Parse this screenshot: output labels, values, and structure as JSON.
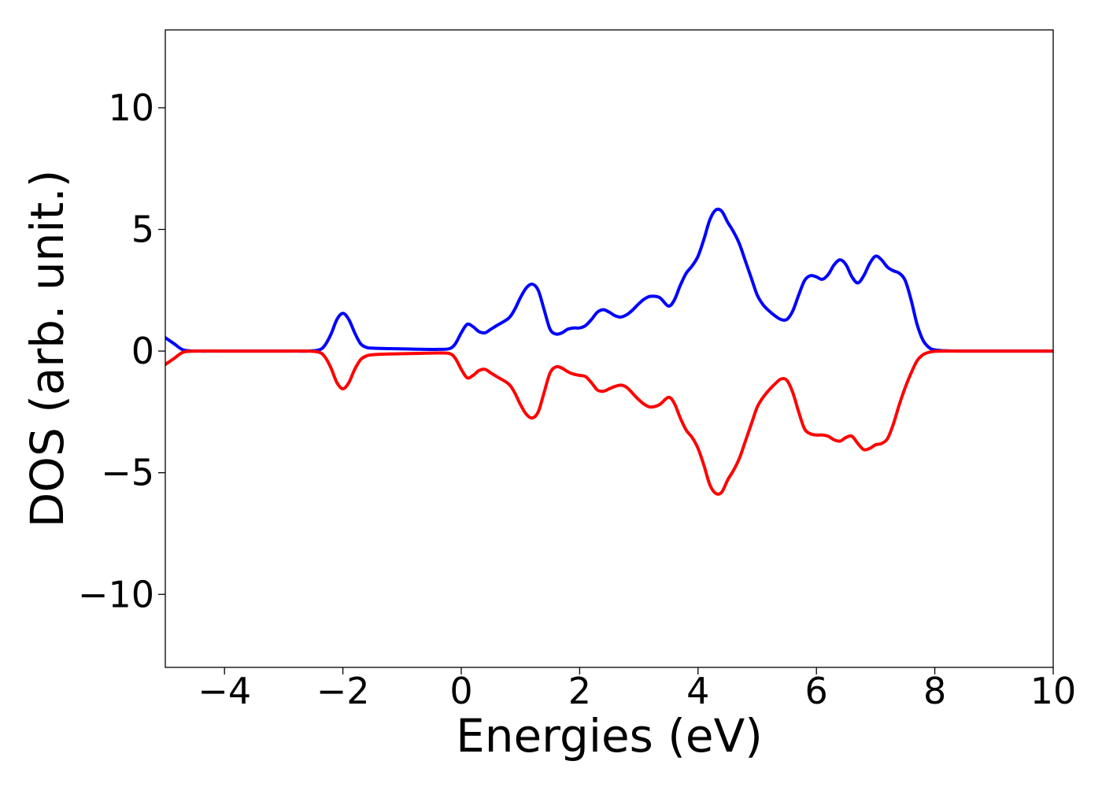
{
  "chart_data": {
    "type": "line",
    "title": "",
    "xlabel": "Energies (eV)",
    "ylabel": "DOS (arb. unit.)",
    "xlim": [
      -5,
      10
    ],
    "ylim": [
      -13,
      13.2
    ],
    "xticks": [
      -4,
      -2,
      0,
      2,
      4,
      6,
      8,
      10
    ],
    "xtick_labels": [
      "−4",
      "−2",
      "0",
      "2",
      "4",
      "6",
      "8",
      "10"
    ],
    "yticks": [
      -10,
      -5,
      0,
      5,
      10
    ],
    "ytick_labels": [
      "−10",
      "−5",
      "0",
      "5",
      "10"
    ],
    "grid": false,
    "legend": "none",
    "series": [
      {
        "color": "#0000ff",
        "x": [
          -5.0,
          -4.85,
          -4.7,
          -4.5,
          -4.0,
          -3.0,
          -2.6,
          -2.4,
          -2.3,
          -2.2,
          -2.1,
          -2.0,
          -1.9,
          -1.8,
          -1.7,
          -1.6,
          -1.5,
          -1.2,
          -0.8,
          -0.4,
          -0.2,
          -0.1,
          0.0,
          0.1,
          0.2,
          0.3,
          0.4,
          0.5,
          0.6,
          0.8,
          0.9,
          1.0,
          1.1,
          1.2,
          1.3,
          1.4,
          1.5,
          1.6,
          1.7,
          1.8,
          1.9,
          2.0,
          2.1,
          2.2,
          2.3,
          2.4,
          2.5,
          2.6,
          2.7,
          2.8,
          2.9,
          3.0,
          3.1,
          3.2,
          3.35,
          3.5,
          3.6,
          3.7,
          3.8,
          3.9,
          4.0,
          4.1,
          4.2,
          4.3,
          4.4,
          4.5,
          4.6,
          4.7,
          4.8,
          4.9,
          5.0,
          5.1,
          5.2,
          5.3,
          5.4,
          5.5,
          5.6,
          5.7,
          5.8,
          5.9,
          6.0,
          6.1,
          6.2,
          6.3,
          6.4,
          6.5,
          6.6,
          6.7,
          6.8,
          6.9,
          7.0,
          7.1,
          7.2,
          7.3,
          7.4,
          7.5,
          7.6,
          7.7,
          7.8,
          7.9,
          8.0,
          8.2,
          8.5,
          9.0,
          10.0
        ],
        "values": [
          0.55,
          0.3,
          0.05,
          0.0,
          0.0,
          0.0,
          0.0,
          0.05,
          0.25,
          0.7,
          1.3,
          1.55,
          1.3,
          0.75,
          0.3,
          0.15,
          0.12,
          0.1,
          0.08,
          0.07,
          0.1,
          0.3,
          0.75,
          1.1,
          1.0,
          0.8,
          0.75,
          0.9,
          1.05,
          1.35,
          1.7,
          2.2,
          2.6,
          2.75,
          2.5,
          1.7,
          0.9,
          0.7,
          0.75,
          0.9,
          0.95,
          0.95,
          1.05,
          1.3,
          1.6,
          1.7,
          1.6,
          1.45,
          1.4,
          1.5,
          1.7,
          1.95,
          2.15,
          2.25,
          2.2,
          1.85,
          2.1,
          2.7,
          3.2,
          3.5,
          3.9,
          4.6,
          5.4,
          5.8,
          5.75,
          5.3,
          4.9,
          4.4,
          3.7,
          3.0,
          2.3,
          1.9,
          1.65,
          1.45,
          1.3,
          1.3,
          1.65,
          2.3,
          2.9,
          3.1,
          3.05,
          2.95,
          3.15,
          3.55,
          3.75,
          3.55,
          3.05,
          2.8,
          3.1,
          3.6,
          3.9,
          3.75,
          3.45,
          3.3,
          3.2,
          2.9,
          2.1,
          1.1,
          0.45,
          0.15,
          0.05,
          0.01,
          0.0,
          0.0,
          0.0
        ]
      },
      {
        "color": "#ff0000",
        "x": [
          -5.0,
          -4.85,
          -4.7,
          -4.5,
          -4.0,
          -3.0,
          -2.6,
          -2.4,
          -2.3,
          -2.2,
          -2.1,
          -2.0,
          -1.9,
          -1.8,
          -1.7,
          -1.6,
          -1.5,
          -1.2,
          -0.8,
          -0.4,
          -0.2,
          -0.1,
          0.0,
          0.1,
          0.2,
          0.3,
          0.4,
          0.5,
          0.6,
          0.8,
          0.9,
          1.0,
          1.1,
          1.2,
          1.3,
          1.4,
          1.5,
          1.6,
          1.7,
          1.8,
          1.9,
          2.0,
          2.1,
          2.2,
          2.3,
          2.4,
          2.5,
          2.6,
          2.7,
          2.8,
          2.9,
          3.0,
          3.1,
          3.2,
          3.35,
          3.5,
          3.6,
          3.7,
          3.8,
          3.9,
          4.0,
          4.1,
          4.2,
          4.3,
          4.4,
          4.5,
          4.6,
          4.7,
          4.8,
          4.9,
          5.0,
          5.1,
          5.2,
          5.3,
          5.4,
          5.5,
          5.6,
          5.7,
          5.8,
          5.9,
          6.0,
          6.1,
          6.2,
          6.3,
          6.4,
          6.5,
          6.6,
          6.7,
          6.8,
          6.9,
          7.0,
          7.1,
          7.2,
          7.3,
          7.4,
          7.5,
          7.6,
          7.7,
          7.8,
          7.9,
          8.0,
          8.2,
          8.5,
          9.0,
          10.0
        ],
        "values": [
          -0.55,
          -0.3,
          -0.05,
          0.0,
          0.0,
          0.0,
          0.0,
          -0.05,
          -0.25,
          -0.7,
          -1.3,
          -1.55,
          -1.3,
          -0.75,
          -0.35,
          -0.2,
          -0.15,
          -0.12,
          -0.1,
          -0.08,
          -0.1,
          -0.3,
          -0.75,
          -1.1,
          -1.0,
          -0.8,
          -0.75,
          -0.9,
          -1.05,
          -1.35,
          -1.7,
          -2.2,
          -2.6,
          -2.75,
          -2.5,
          -1.7,
          -0.9,
          -0.65,
          -0.7,
          -0.85,
          -0.95,
          -1.0,
          -1.05,
          -1.3,
          -1.6,
          -1.65,
          -1.55,
          -1.45,
          -1.4,
          -1.5,
          -1.75,
          -2.0,
          -2.2,
          -2.3,
          -2.2,
          -1.9,
          -2.15,
          -2.75,
          -3.25,
          -3.55,
          -4.0,
          -4.7,
          -5.5,
          -5.85,
          -5.8,
          -5.3,
          -4.9,
          -4.4,
          -3.7,
          -3.0,
          -2.3,
          -1.9,
          -1.6,
          -1.35,
          -1.15,
          -1.2,
          -1.7,
          -2.5,
          -3.2,
          -3.4,
          -3.45,
          -3.45,
          -3.5,
          -3.65,
          -3.7,
          -3.55,
          -3.5,
          -3.8,
          -4.05,
          -4.0,
          -3.85,
          -3.8,
          -3.6,
          -3.0,
          -2.2,
          -1.5,
          -0.9,
          -0.4,
          -0.15,
          -0.05,
          -0.01,
          0.0,
          0.0,
          0.0,
          0.0
        ]
      }
    ]
  }
}
